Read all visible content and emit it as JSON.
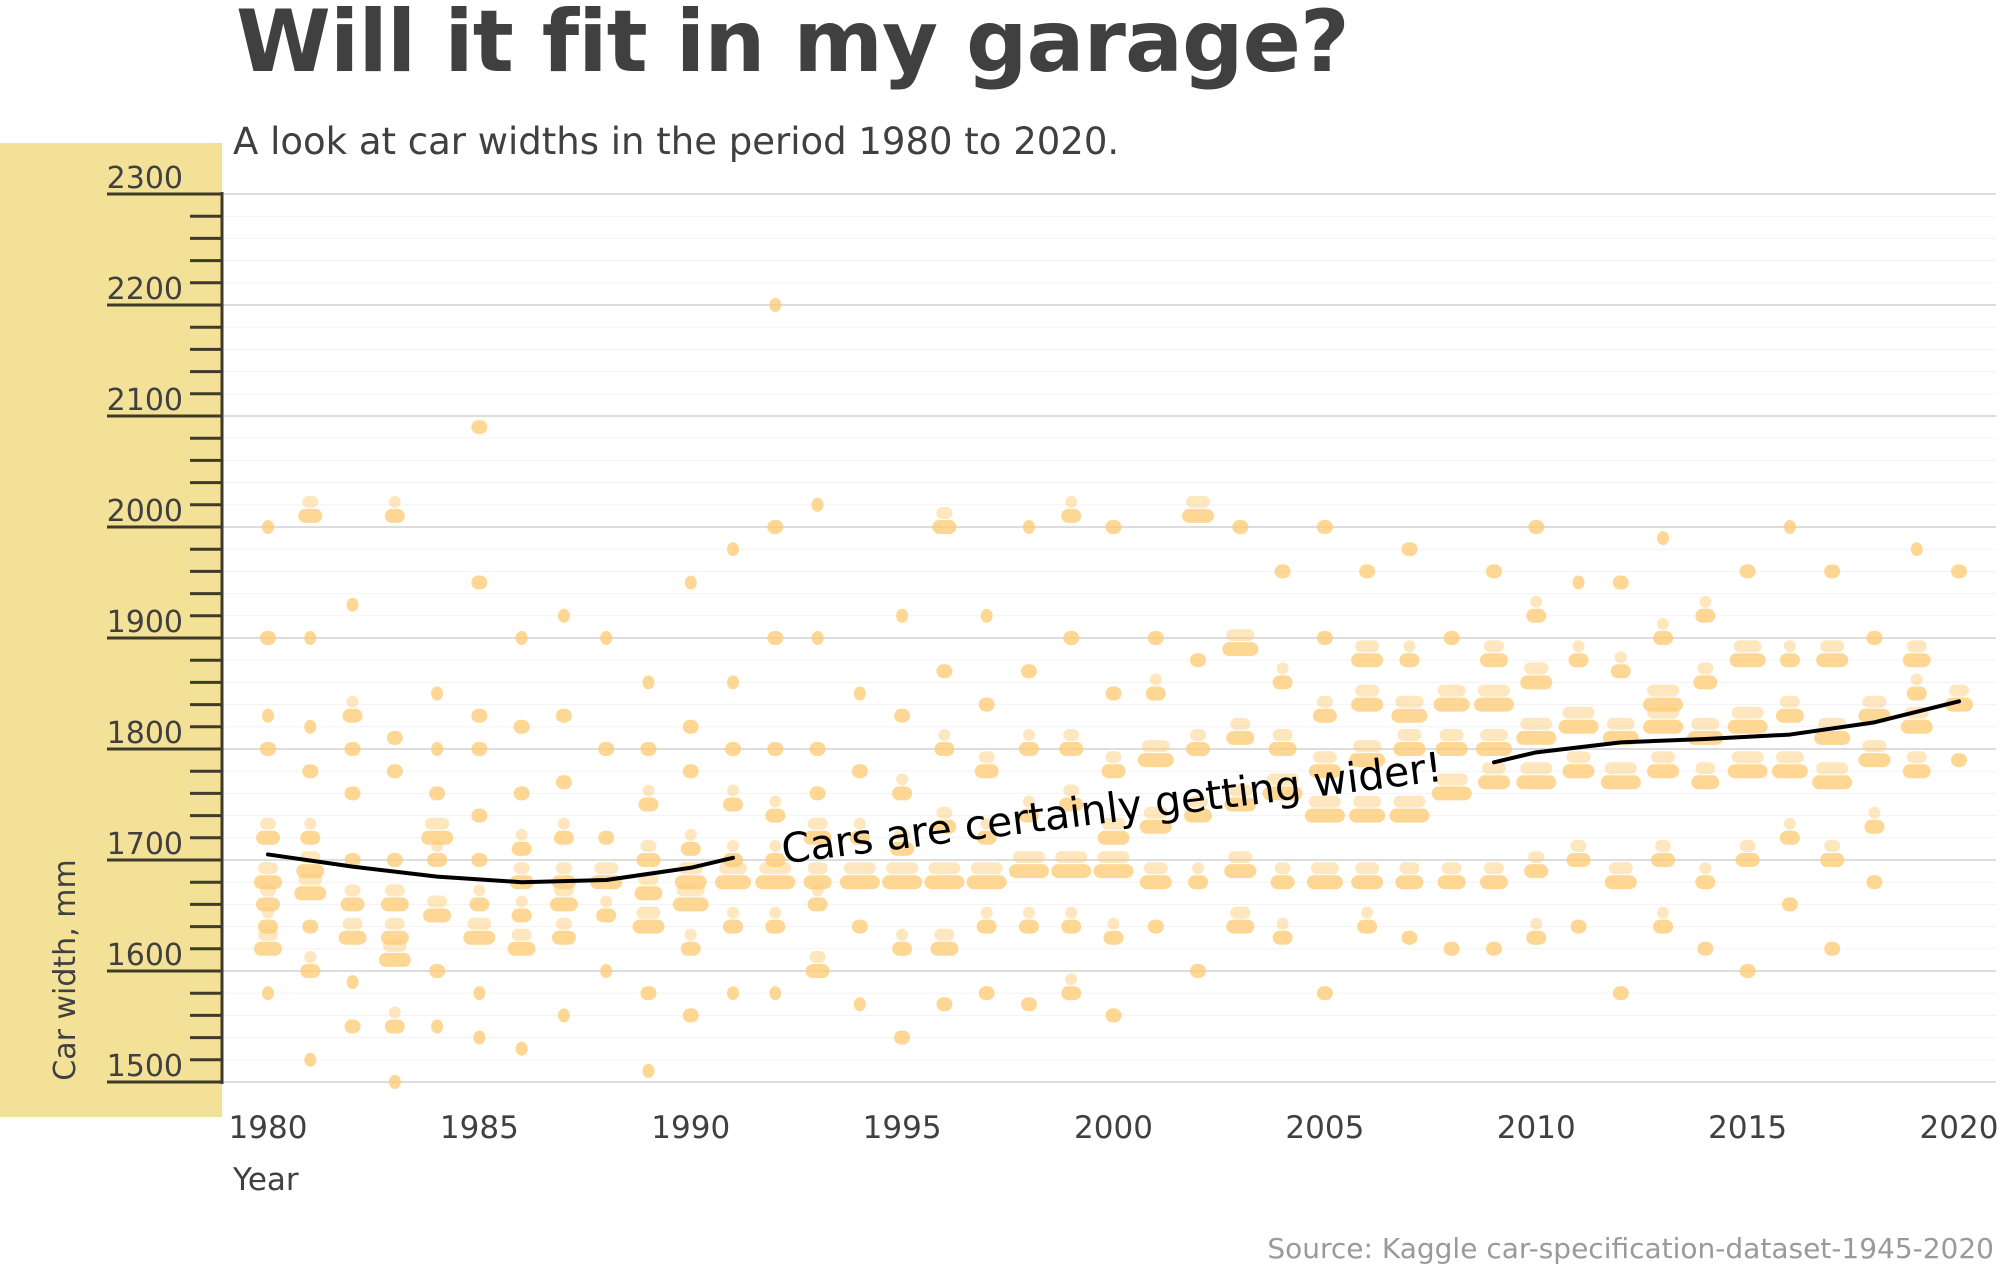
{
  "title": "Will it fit in my garage?",
  "subtitle": "A look at car widths in the period 1980 to 2020.",
  "source": "Source: Kaggle car-specification-dataset-1945-2020",
  "colors": {
    "points": "#fdc970",
    "axis_panel": "#f2e196",
    "trend": "#000000",
    "grid": "#dddddd",
    "text": "#404040"
  },
  "chart_data": {
    "type": "scatter",
    "title": "Will it fit in my garage?",
    "xlabel": "Year",
    "ylabel": "Car width, mm",
    "xlim": [
      1980,
      2020
    ],
    "ylim": [
      1500,
      2300
    ],
    "xticks": [
      1980,
      1985,
      1990,
      1995,
      2000,
      2005,
      2010,
      2015,
      2020
    ],
    "yticks": [
      1500,
      1600,
      1700,
      1800,
      1900,
      2000,
      2100,
      2200,
      2300
    ],
    "grid": true,
    "annotation": "Cars are certainly getting wider!",
    "trend": {
      "x": [
        1980,
        1982,
        1984,
        1986,
        1988,
        1990,
        1991,
        2009,
        2010,
        2012,
        2014,
        2016,
        2018,
        2020
      ],
      "y": [
        1705,
        1694,
        1685,
        1680,
        1682,
        1693,
        1702,
        1788,
        1797,
        1806,
        1809,
        1813,
        1824,
        1843
      ]
    },
    "points_by_year": {
      "1980": [
        [
          1620,
          5
        ],
        [
          1640,
          3
        ],
        [
          1660,
          4
        ],
        [
          1680,
          5
        ],
        [
          1720,
          4
        ],
        [
          1800,
          2
        ],
        [
          1830,
          1
        ],
        [
          1900,
          2
        ],
        [
          2000,
          1
        ],
        [
          1580,
          1
        ]
      ],
      "1981": [
        [
          1600,
          3
        ],
        [
          1640,
          2
        ],
        [
          1670,
          6
        ],
        [
          1690,
          5
        ],
        [
          1720,
          3
        ],
        [
          1780,
          2
        ],
        [
          1820,
          1
        ],
        [
          1900,
          1
        ],
        [
          2010,
          4
        ],
        [
          1520,
          1
        ]
      ],
      "1982": [
        [
          1550,
          2
        ],
        [
          1630,
          5
        ],
        [
          1660,
          4
        ],
        [
          1700,
          2
        ],
        [
          1760,
          2
        ],
        [
          1800,
          2
        ],
        [
          1830,
          3
        ],
        [
          1930,
          1
        ],
        [
          1590,
          1
        ]
      ],
      "1983": [
        [
          1550,
          3
        ],
        [
          1610,
          6
        ],
        [
          1630,
          5
        ],
        [
          1660,
          5
        ],
        [
          1700,
          2
        ],
        [
          1780,
          2
        ],
        [
          1810,
          2
        ],
        [
          2010,
          3
        ],
        [
          1500,
          1
        ]
      ],
      "1984": [
        [
          1600,
          2
        ],
        [
          1650,
          5
        ],
        [
          1700,
          3
        ],
        [
          1720,
          6
        ],
        [
          1760,
          2
        ],
        [
          1800,
          1
        ],
        [
          1850,
          1
        ],
        [
          1550,
          1
        ]
      ],
      "1985": [
        [
          1540,
          1
        ],
        [
          1630,
          6
        ],
        [
          1660,
          3
        ],
        [
          1700,
          2
        ],
        [
          1740,
          2
        ],
        [
          1800,
          2
        ],
        [
          1830,
          2
        ],
        [
          1950,
          2
        ],
        [
          2090,
          2
        ],
        [
          1580,
          1
        ]
      ],
      "1986": [
        [
          1620,
          5
        ],
        [
          1650,
          3
        ],
        [
          1680,
          4
        ],
        [
          1710,
          3
        ],
        [
          1760,
          2
        ],
        [
          1820,
          2
        ],
        [
          1900,
          1
        ],
        [
          1530,
          1
        ]
      ],
      "1987": [
        [
          1630,
          4
        ],
        [
          1660,
          5
        ],
        [
          1680,
          4
        ],
        [
          1720,
          3
        ],
        [
          1770,
          2
        ],
        [
          1830,
          2
        ],
        [
          1920,
          1
        ],
        [
          1560,
          1
        ]
      ],
      "1988": [
        [
          1650,
          3
        ],
        [
          1680,
          6
        ],
        [
          1720,
          2
        ],
        [
          1800,
          2
        ],
        [
          1900,
          1
        ],
        [
          1600,
          1
        ]
      ],
      "1989": [
        [
          1580,
          2
        ],
        [
          1640,
          6
        ],
        [
          1670,
          5
        ],
        [
          1700,
          4
        ],
        [
          1750,
          3
        ],
        [
          1800,
          2
        ],
        [
          1860,
          1
        ],
        [
          1510,
          1
        ]
      ],
      "1990": [
        [
          1560,
          2
        ],
        [
          1620,
          3
        ],
        [
          1660,
          7
        ],
        [
          1680,
          6
        ],
        [
          1710,
          3
        ],
        [
          1780,
          2
        ],
        [
          1820,
          2
        ],
        [
          1950,
          1
        ]
      ],
      "1991": [
        [
          1580,
          1
        ],
        [
          1640,
          3
        ],
        [
          1680,
          7
        ],
        [
          1700,
          3
        ],
        [
          1750,
          3
        ],
        [
          1800,
          2
        ],
        [
          1860,
          1
        ],
        [
          1980,
          1
        ]
      ],
      "1992": [
        [
          1580,
          1
        ],
        [
          1640,
          3
        ],
        [
          1680,
          8
        ],
        [
          1700,
          3
        ],
        [
          1740,
          3
        ],
        [
          1800,
          2
        ],
        [
          1900,
          2
        ],
        [
          2000,
          2
        ],
        [
          2200,
          1
        ]
      ],
      "1993": [
        [
          1600,
          4
        ],
        [
          1660,
          3
        ],
        [
          1680,
          5
        ],
        [
          1720,
          5
        ],
        [
          1760,
          2
        ],
        [
          1800,
          2
        ],
        [
          1900,
          1
        ],
        [
          2020,
          1
        ]
      ],
      "1994": [
        [
          1570,
          1
        ],
        [
          1640,
          2
        ],
        [
          1680,
          8
        ],
        [
          1720,
          3
        ],
        [
          1780,
          2
        ],
        [
          1850,
          1
        ]
      ],
      "1995": [
        [
          1540,
          2
        ],
        [
          1620,
          3
        ],
        [
          1680,
          8
        ],
        [
          1710,
          4
        ],
        [
          1760,
          3
        ],
        [
          1830,
          2
        ],
        [
          1920,
          1
        ]
      ],
      "1996": [
        [
          1570,
          2
        ],
        [
          1620,
          5
        ],
        [
          1680,
          8
        ],
        [
          1730,
          4
        ],
        [
          1800,
          3
        ],
        [
          1870,
          2
        ],
        [
          2000,
          4
        ]
      ],
      "1997": [
        [
          1580,
          2
        ],
        [
          1640,
          3
        ],
        [
          1680,
          8
        ],
        [
          1720,
          3
        ],
        [
          1780,
          4
        ],
        [
          1840,
          2
        ],
        [
          1920,
          1
        ]
      ],
      "1998": [
        [
          1570,
          2
        ],
        [
          1640,
          3
        ],
        [
          1690,
          8
        ],
        [
          1740,
          3
        ],
        [
          1800,
          3
        ],
        [
          1870,
          2
        ],
        [
          2000,
          1
        ]
      ],
      "1999": [
        [
          1580,
          3
        ],
        [
          1640,
          3
        ],
        [
          1690,
          8
        ],
        [
          1750,
          4
        ],
        [
          1800,
          4
        ],
        [
          1900,
          2
        ],
        [
          2010,
          3
        ]
      ],
      "2000": [
        [
          1560,
          2
        ],
        [
          1630,
          3
        ],
        [
          1690,
          8
        ],
        [
          1720,
          6
        ],
        [
          1780,
          4
        ],
        [
          1850,
          2
        ],
        [
          2000,
          2
        ]
      ],
      "2001": [
        [
          1640,
          2
        ],
        [
          1680,
          6
        ],
        [
          1730,
          6
        ],
        [
          1790,
          7
        ],
        [
          1850,
          3
        ],
        [
          1900,
          2
        ]
      ],
      "2002": [
        [
          1600,
          2
        ],
        [
          1680,
          3
        ],
        [
          1740,
          5
        ],
        [
          1800,
          4
        ],
        [
          1880,
          2
        ],
        [
          2010,
          6
        ]
      ],
      "2003": [
        [
          1640,
          5
        ],
        [
          1690,
          6
        ],
        [
          1750,
          6
        ],
        [
          1810,
          5
        ],
        [
          1890,
          7
        ],
        [
          2000,
          2
        ]
      ],
      "2004": [
        [
          1630,
          3
        ],
        [
          1680,
          4
        ],
        [
          1760,
          8
        ],
        [
          1800,
          5
        ],
        [
          1860,
          3
        ],
        [
          1960,
          2
        ]
      ],
      "2005": [
        [
          1580,
          2
        ],
        [
          1680,
          7
        ],
        [
          1740,
          8
        ],
        [
          1780,
          6
        ],
        [
          1830,
          4
        ],
        [
          1900,
          2
        ],
        [
          2000,
          2
        ]
      ],
      "2006": [
        [
          1640,
          3
        ],
        [
          1680,
          6
        ],
        [
          1740,
          7
        ],
        [
          1790,
          7
        ],
        [
          1840,
          6
        ],
        [
          1880,
          6
        ],
        [
          1960,
          2
        ]
      ],
      "2007": [
        [
          1630,
          2
        ],
        [
          1680,
          5
        ],
        [
          1740,
          8
        ],
        [
          1800,
          6
        ],
        [
          1830,
          7
        ],
        [
          1880,
          3
        ],
        [
          1980,
          2
        ]
      ],
      "2008": [
        [
          1620,
          2
        ],
        [
          1680,
          5
        ],
        [
          1760,
          8
        ],
        [
          1800,
          6
        ],
        [
          1840,
          7
        ],
        [
          1900,
          2
        ]
      ],
      "2009": [
        [
          1620,
          2
        ],
        [
          1680,
          5
        ],
        [
          1770,
          6
        ],
        [
          1800,
          7
        ],
        [
          1840,
          8
        ],
        [
          1880,
          5
        ],
        [
          1960,
          2
        ]
      ],
      "2010": [
        [
          1630,
          3
        ],
        [
          1690,
          4
        ],
        [
          1770,
          8
        ],
        [
          1810,
          8
        ],
        [
          1860,
          6
        ],
        [
          1920,
          3
        ],
        [
          2000,
          2
        ]
      ],
      "2011": [
        [
          1640,
          2
        ],
        [
          1700,
          4
        ],
        [
          1780,
          6
        ],
        [
          1820,
          8
        ],
        [
          1880,
          3
        ],
        [
          1950,
          1
        ]
      ],
      "2012": [
        [
          1580,
          2
        ],
        [
          1680,
          6
        ],
        [
          1770,
          8
        ],
        [
          1810,
          7
        ],
        [
          1870,
          3
        ],
        [
          1950,
          2
        ]
      ],
      "2013": [
        [
          1640,
          3
        ],
        [
          1700,
          4
        ],
        [
          1780,
          6
        ],
        [
          1820,
          8
        ],
        [
          1840,
          8
        ],
        [
          1900,
          3
        ],
        [
          1990,
          1
        ]
      ],
      "2014": [
        [
          1620,
          2
        ],
        [
          1680,
          3
        ],
        [
          1770,
          5
        ],
        [
          1810,
          7
        ],
        [
          1860,
          4
        ],
        [
          1920,
          3
        ]
      ],
      "2015": [
        [
          1600,
          2
        ],
        [
          1700,
          4
        ],
        [
          1780,
          8
        ],
        [
          1820,
          8
        ],
        [
          1880,
          7
        ],
        [
          1960,
          2
        ]
      ],
      "2016": [
        [
          1660,
          2
        ],
        [
          1720,
          3
        ],
        [
          1780,
          7
        ],
        [
          1830,
          5
        ],
        [
          1880,
          3
        ],
        [
          2000,
          1
        ]
      ],
      "2017": [
        [
          1620,
          2
        ],
        [
          1700,
          4
        ],
        [
          1770,
          8
        ],
        [
          1810,
          7
        ],
        [
          1880,
          6
        ],
        [
          1960,
          2
        ]
      ],
      "2018": [
        [
          1680,
          2
        ],
        [
          1730,
          3
        ],
        [
          1790,
          6
        ],
        [
          1830,
          6
        ],
        [
          1900,
          2
        ]
      ],
      "2019": [
        [
          1780,
          5
        ],
        [
          1820,
          6
        ],
        [
          1850,
          3
        ],
        [
          1880,
          5
        ],
        [
          1980,
          1
        ]
      ],
      "2020": [
        [
          1790,
          2
        ],
        [
          1840,
          5
        ],
        [
          1960,
          2
        ]
      ]
    }
  }
}
